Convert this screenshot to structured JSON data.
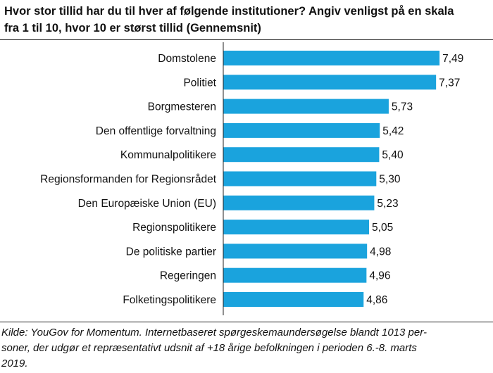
{
  "title_lines": [
    "Hvor stor tillid har du til hver af følgende institutioner? Angiv venligst på en skala",
    "fra 1 til 10, hvor 10 er størst tillid (Gennemsnit)"
  ],
  "source_lines": [
    "Kilde: YouGov for Momentum. Internetbaseret spørgeskemaundersøgelse blandt 1013 per-",
    "soner, der udgør et repræsentativt udsnit af +18 årige befolkningen i perioden 6.-8. marts",
    "2019."
  ],
  "colors": {
    "bar": "#1aa3dd",
    "axis": "#222222"
  },
  "chart_data": {
    "type": "bar",
    "orientation": "horizontal",
    "categories": [
      "Domstolene",
      "Politiet",
      "Borgmesteren",
      "Den offentlige forvaltning",
      "Kommunalpolitikere",
      "Regionsformanden for Regionsrådet",
      "Den Europæiske Union (EU)",
      "Regionspolitikere",
      "De politiske partier",
      "Regeringen",
      "Folketingspolitikere"
    ],
    "values": [
      7.49,
      7.37,
      5.73,
      5.42,
      5.4,
      5.3,
      5.23,
      5.05,
      4.98,
      4.96,
      4.86
    ],
    "value_labels": [
      "7,49",
      "7,37",
      "5,73",
      "5,42",
      "5,40",
      "5,30",
      "5,23",
      "5,05",
      "4,98",
      "4,96",
      "4,86"
    ],
    "xlim": [
      0,
      10
    ],
    "grid": false,
    "legend": "none"
  }
}
